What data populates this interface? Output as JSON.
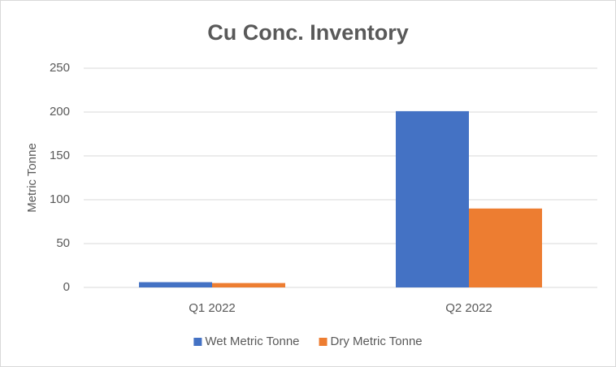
{
  "chart_data": {
    "type": "bar",
    "title": "Cu Conc. Inventory",
    "y_label": "Metric Tonne",
    "categories": [
      "Q1 2022",
      "Q2 2022"
    ],
    "series": [
      {
        "name": "Wet Metric Tonne",
        "color": "#4472c4",
        "values": [
          6,
          201
        ]
      },
      {
        "name": "Dry Metric Tonne",
        "color": "#ed7d31",
        "values": [
          5,
          90
        ]
      }
    ],
    "ylim": [
      0,
      250
    ],
    "yticks": [
      0,
      50,
      100,
      150,
      200,
      250
    ],
    "grid": true,
    "legend": "bottom"
  }
}
